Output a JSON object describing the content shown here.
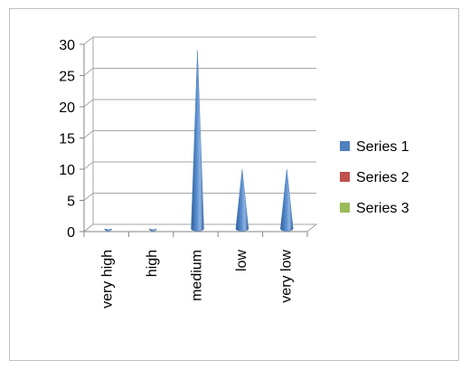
{
  "chart_data": {
    "type": "bar",
    "style": "3d-cone",
    "categories": [
      "very high",
      "high",
      "medium",
      "low",
      "very low"
    ],
    "series": [
      {
        "name": "Series 1",
        "color": "#4f81bd",
        "values": [
          0.3,
          0.3,
          29,
          10,
          10
        ]
      },
      {
        "name": "Series 2",
        "color": "#c0504d",
        "values": [
          0,
          0,
          0,
          0,
          0
        ]
      },
      {
        "name": "Series 3",
        "color": "#9bbb59",
        "values": [
          0,
          0,
          0,
          0,
          0
        ]
      }
    ],
    "ylim": [
      0,
      30
    ],
    "yticks": [
      0,
      5,
      10,
      15,
      20,
      25,
      30
    ],
    "grid": true,
    "legend": "right"
  }
}
